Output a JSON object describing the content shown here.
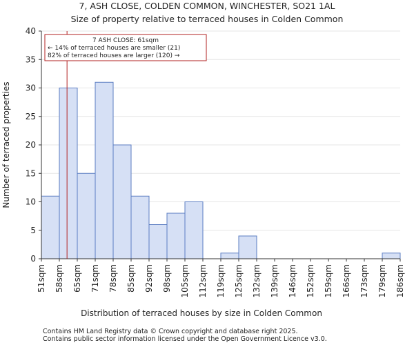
{
  "chart_data": {
    "type": "bar",
    "title_line1": "7, ASH CLOSE, COLDEN COMMON, WINCHESTER, SO21 1AL",
    "title_line2": "Size of property relative to terraced houses in Colden Common",
    "xlabel": "Distribution of terraced houses by size in Colden Common",
    "ylabel": "Number of terraced properties",
    "ylim": [
      0,
      40
    ],
    "yticks": [
      0,
      5,
      10,
      15,
      20,
      25,
      30,
      35,
      40
    ],
    "bin_edges": [
      "51sqm",
      "58sqm",
      "65sqm",
      "71sqm",
      "78sqm",
      "85sqm",
      "92sqm",
      "98sqm",
      "105sqm",
      "112sqm",
      "119sqm",
      "125sqm",
      "132sqm",
      "139sqm",
      "146sqm",
      "152sqm",
      "159sqm",
      "166sqm",
      "173sqm",
      "179sqm",
      "186sqm"
    ],
    "values": [
      11,
      30,
      15,
      31,
      20,
      11,
      6,
      8,
      10,
      0,
      1,
      4,
      0,
      0,
      0,
      0,
      0,
      0,
      0,
      1
    ],
    "marker_value": 61,
    "marker_bin_start": 58,
    "marker_bin_end": 65,
    "annotation": {
      "line1": "7 ASH CLOSE: 61sqm",
      "line2": "← 14% of terraced houses are smaller (21)",
      "line3": "82% of terraced houses are larger (120) →"
    }
  },
  "footer": {
    "line1": "Contains HM Land Registry data © Crown copyright and database right 2025.",
    "line2": "Contains public sector information licensed under the Open Government Licence v3.0."
  },
  "colors": {
    "bar_fill": "#d6e0f5",
    "bar_stroke": "#5b7dc2",
    "marker": "#b22222",
    "grid": "#e6e6e6",
    "axis": "#333333"
  }
}
